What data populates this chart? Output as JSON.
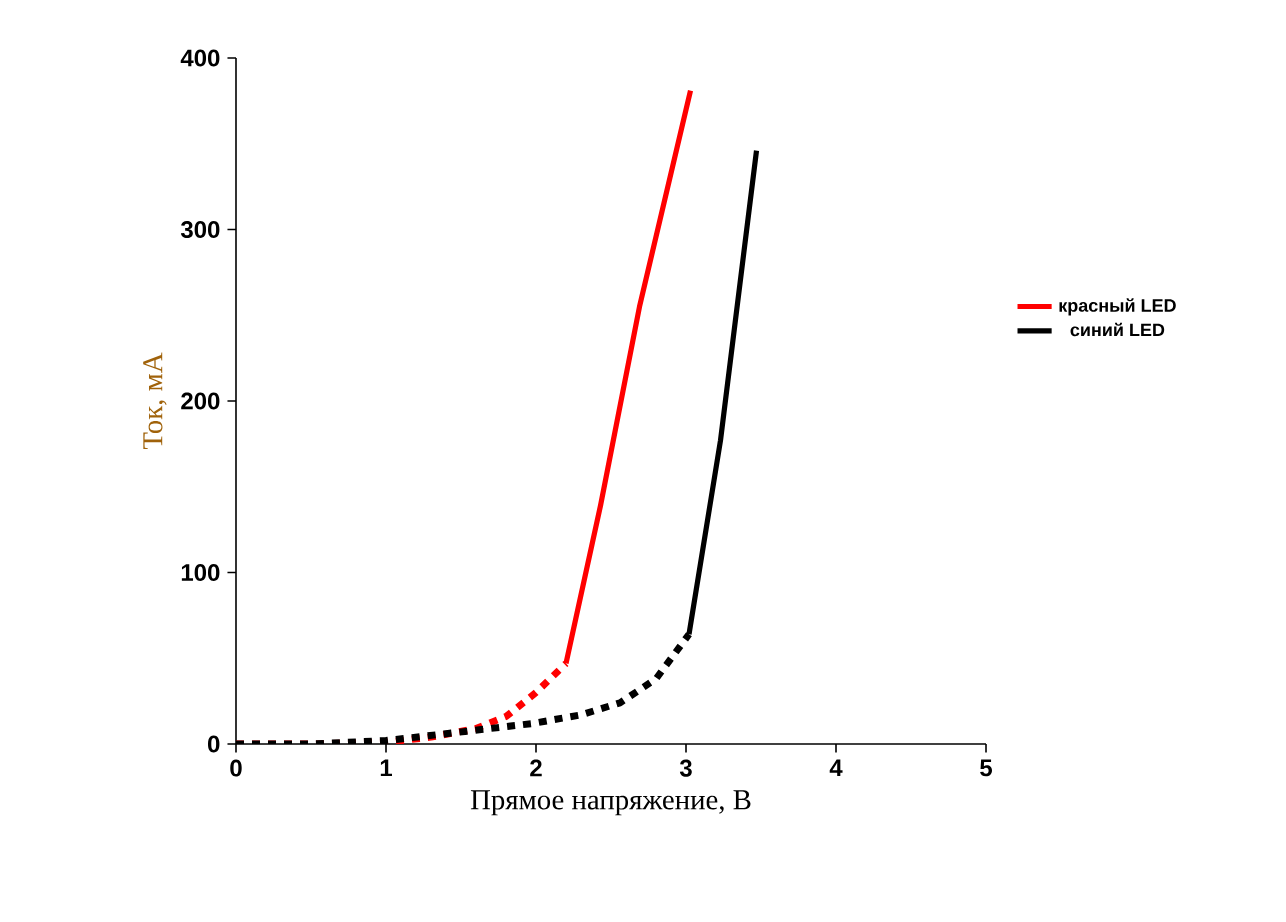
{
  "chart_data": {
    "type": "line",
    "xlabel": "Прямое напряжение, В",
    "ylabel": "Ток, мА",
    "xlim": [
      0,
      5
    ],
    "ylim": [
      0,
      400
    ],
    "xticks": [
      0,
      1,
      2,
      3,
      4,
      5
    ],
    "yticks": [
      0,
      100,
      200,
      300,
      400
    ],
    "grid": false,
    "legend": "right",
    "marker": "none",
    "series": [
      {
        "color": "#ff0000",
        "line_style": "dotted",
        "x": [
          0,
          0.5,
          1.0,
          1.3,
          1.6,
          1.8,
          2.0,
          2.2
        ],
        "values": [
          0,
          0,
          1,
          4,
          9,
          16,
          30,
          47
        ]
      },
      {
        "name": "красный LED",
        "color": "#ff0000",
        "line_style": "solid",
        "x": [
          2.2,
          2.43,
          2.69,
          3.03
        ],
        "values": [
          47,
          139,
          255,
          381
        ]
      },
      {
        "color": "#000000",
        "line_style": "dotted",
        "x": [
          0,
          0.5,
          1.0,
          1.4,
          1.98,
          2.3,
          2.56,
          2.8,
          3.02
        ],
        "values": [
          0,
          0,
          2,
          6,
          12,
          17,
          24,
          38,
          64
        ]
      },
      {
        "name": "синий LED",
        "color": "#000000",
        "line_style": "solid",
        "x": [
          3.02,
          3.23,
          3.47
        ],
        "values": [
          64,
          177,
          346
        ]
      }
    ]
  }
}
